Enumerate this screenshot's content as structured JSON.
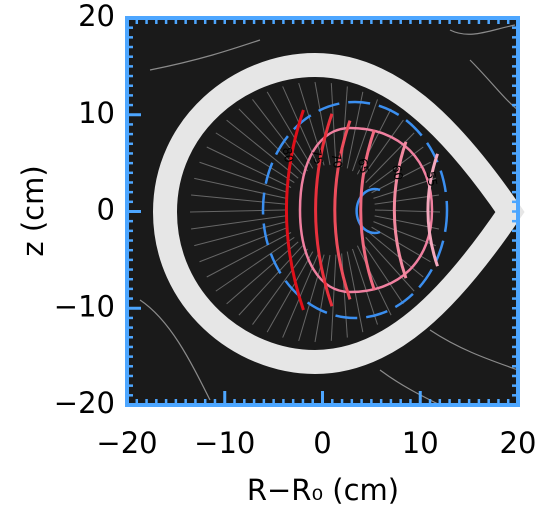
{
  "chart_data": {
    "type": "contour",
    "xlabel": "R−R₀ (cm)",
    "ylabel": "z (cm)",
    "xlim": [
      -20,
      20
    ],
    "ylim": [
      -20,
      20
    ],
    "xticks": [
      {
        "value": -20,
        "label": "−20"
      },
      {
        "value": -10,
        "label": "−10"
      },
      0,
      10,
      20
    ],
    "yticks": [
      {
        "value": -20,
        "label": "−20"
      },
      {
        "value": -10,
        "label": "−10"
      },
      0,
      10,
      20
    ],
    "frame_color": "#4da6ff",
    "contours": [
      {
        "level": 80,
        "x": -4.2,
        "color": "#e0101a"
      },
      {
        "level": 75,
        "x": -1.2,
        "color": "#e8303c"
      },
      {
        "level": 70,
        "x": 0.8,
        "color": "#ec4d5c"
      },
      {
        "level": 65,
        "x": 3.5,
        "color": "#f06a80"
      },
      {
        "level": 60,
        "x": 7,
        "color": "#f28aa0"
      },
      {
        "level": 55,
        "x": 10.5,
        "color": "#f5a8bd"
      }
    ]
  }
}
